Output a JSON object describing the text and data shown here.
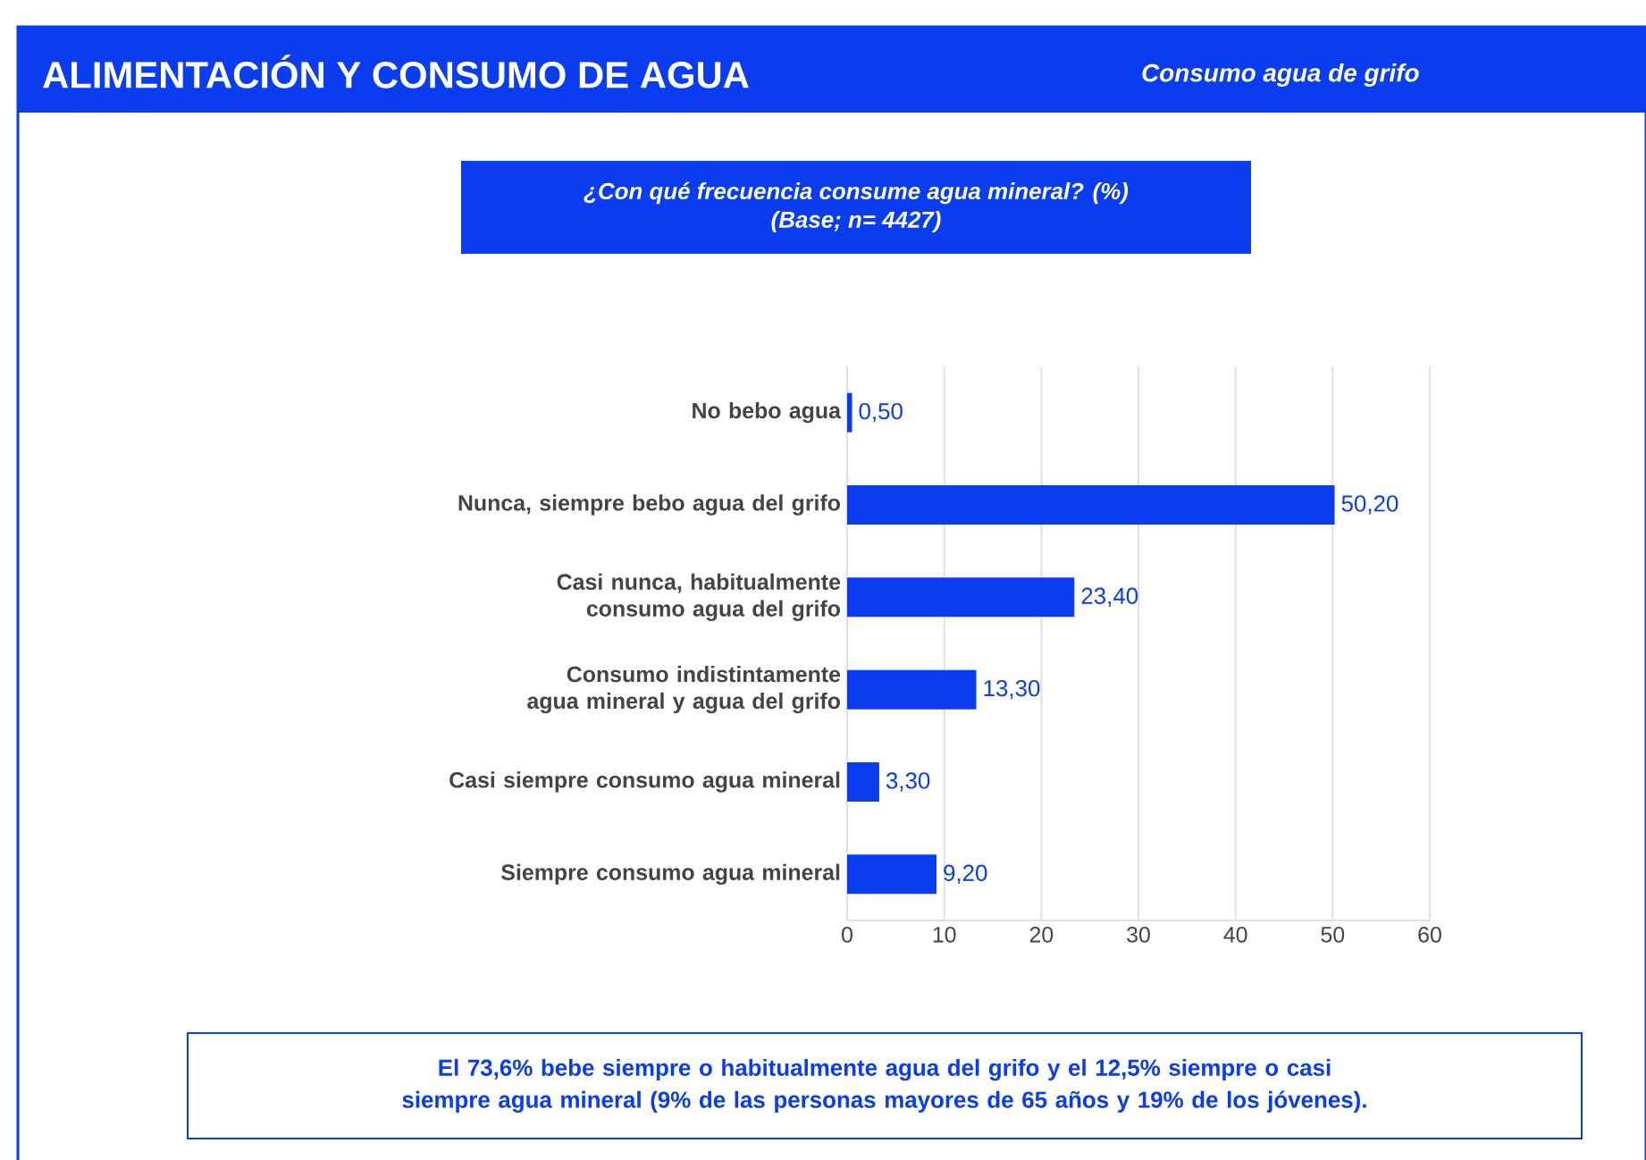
{
  "chart_data": {
    "type": "bar",
    "orientation": "horizontal",
    "title": "ALIMENTACIÓN Y CONSUMO DE AGUA",
    "subtitle": "Consumo agua de grifo",
    "annotations": [
      "¿Con qué frecuencia consume agua mineral? (%)",
      "(Base; n= 4427)",
      "El 73,6% bebe siempre o habitualmente agua del grifo y el 12,5% siempre o casi siempre agua mineral (9% de las personas mayores de 65 años y 19% de los jóvenes)."
    ],
    "categories": [
      "No bebo agua",
      "Nunca, siempre bebo agua del grifo",
      "Casi nunca, habitualmente consumo agua del grifo",
      "Consumo indistintamente agua mineral y agua del grifo",
      "Casi siempre consumo agua mineral",
      "Siempre consumo agua mineral"
    ],
    "values": [
      0.5,
      50.2,
      23.4,
      13.3,
      3.3,
      9.2
    ],
    "value_labels": [
      "0,50",
      "50,20",
      "23,40",
      "13,30",
      "3,30",
      "9,20"
    ],
    "color": "#0a3cf0",
    "xlim": [
      0,
      60
    ],
    "xticks": [
      0,
      10,
      20,
      30,
      40,
      50,
      60
    ],
    "grid": "x"
  }
}
